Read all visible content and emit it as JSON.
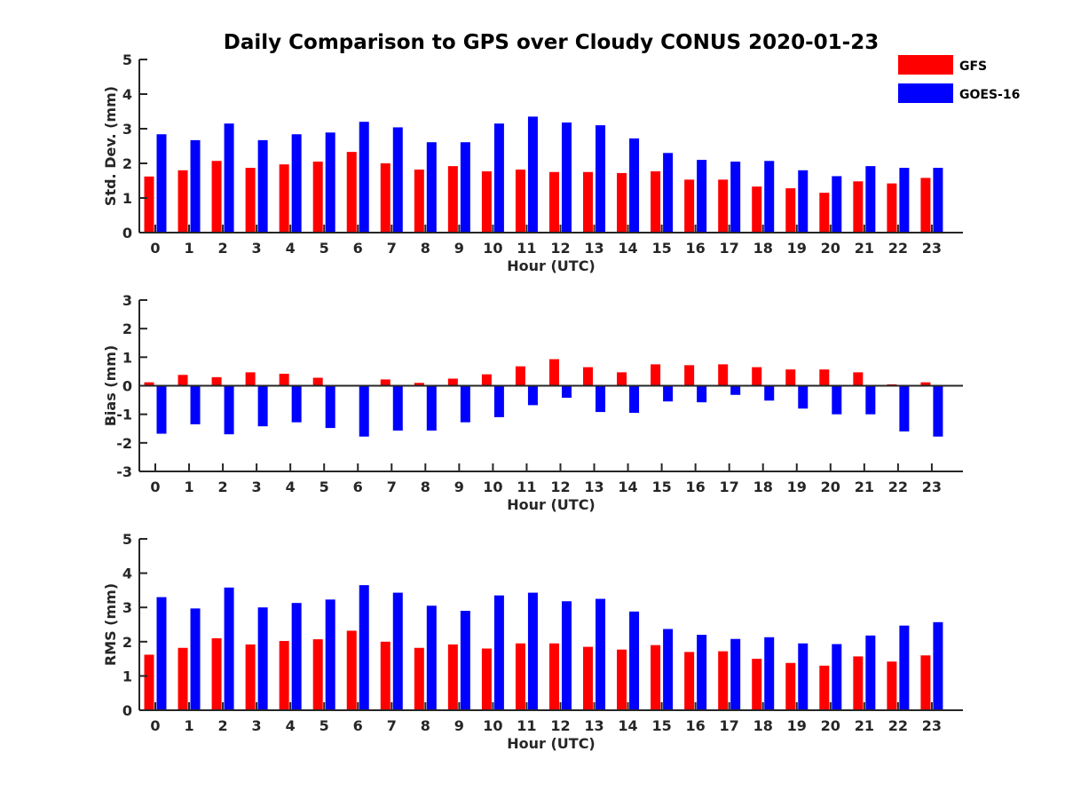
{
  "title": "Daily Comparison to GPS over Cloudy CONUS 2020-01-23",
  "legend": {
    "placement": "top-right",
    "items": [
      {
        "label": "GFS",
        "color": "#ff0000"
      },
      {
        "label": "GOES-16",
        "color": "#0000ff"
      }
    ]
  },
  "chart_data": [
    {
      "type": "bar",
      "xlabel": "Hour (UTC)",
      "ylabel": "Std. Dev. (mm)",
      "ylim": [
        0,
        5
      ],
      "yticks": [
        "0",
        "1",
        "2",
        "3",
        "4",
        "5"
      ],
      "categories": [
        "0",
        "1",
        "2",
        "3",
        "4",
        "5",
        "6",
        "7",
        "8",
        "9",
        "10",
        "11",
        "12",
        "13",
        "14",
        "15",
        "16",
        "17",
        "18",
        "19",
        "20",
        "21",
        "22",
        "23"
      ],
      "series": [
        {
          "name": "GFS",
          "color": "#ff0000",
          "values": [
            1.62,
            1.8,
            2.07,
            1.87,
            1.97,
            2.05,
            2.33,
            2.0,
            1.82,
            1.92,
            1.77,
            1.82,
            1.75,
            1.75,
            1.72,
            1.77,
            1.53,
            1.53,
            1.33,
            1.28,
            1.15,
            1.48,
            1.42,
            1.58
          ]
        },
        {
          "name": "GOES-16",
          "color": "#0000ff",
          "values": [
            2.84,
            2.67,
            3.15,
            2.67,
            2.84,
            2.89,
            3.2,
            3.04,
            2.61,
            2.61,
            3.15,
            3.35,
            3.18,
            3.1,
            2.72,
            2.3,
            2.1,
            2.05,
            2.07,
            1.8,
            1.63,
            1.92,
            1.87,
            1.87
          ]
        }
      ]
    },
    {
      "type": "bar",
      "xlabel": "Hour (UTC)",
      "ylabel": "Bias (mm)",
      "ylim": [
        -3,
        3
      ],
      "yticks": [
        "-3",
        "-2",
        "-1",
        "0",
        "1",
        "2",
        "3"
      ],
      "categories": [
        "0",
        "1",
        "2",
        "3",
        "4",
        "5",
        "6",
        "7",
        "8",
        "9",
        "10",
        "11",
        "12",
        "13",
        "14",
        "15",
        "16",
        "17",
        "18",
        "19",
        "20",
        "21",
        "22",
        "23"
      ],
      "series": [
        {
          "name": "GFS",
          "color": "#ff0000",
          "values": [
            0.12,
            0.38,
            0.3,
            0.47,
            0.42,
            0.28,
            0.0,
            0.22,
            0.1,
            0.25,
            0.4,
            0.68,
            0.93,
            0.65,
            0.47,
            0.75,
            0.72,
            0.75,
            0.65,
            0.57,
            0.57,
            0.47,
            0.05,
            0.12
          ]
        },
        {
          "name": "GOES-16",
          "color": "#0000ff",
          "values": [
            -1.68,
            -1.35,
            -1.7,
            -1.42,
            -1.28,
            -1.48,
            -1.78,
            -1.57,
            -1.57,
            -1.28,
            -1.1,
            -0.68,
            -0.42,
            -0.92,
            -0.95,
            -0.55,
            -0.58,
            -0.32,
            -0.52,
            -0.8,
            -1.0,
            -1.0,
            -1.6,
            -1.78
          ]
        }
      ]
    },
    {
      "type": "bar",
      "xlabel": "Hour (UTC)",
      "ylabel": "RMS (mm)",
      "ylim": [
        0,
        5
      ],
      "yticks": [
        "0",
        "1",
        "2",
        "3",
        "4",
        "5"
      ],
      "categories": [
        "0",
        "1",
        "2",
        "3",
        "4",
        "5",
        "6",
        "7",
        "8",
        "9",
        "10",
        "11",
        "12",
        "13",
        "14",
        "15",
        "16",
        "17",
        "18",
        "19",
        "20",
        "21",
        "22",
        "23"
      ],
      "series": [
        {
          "name": "GFS",
          "color": "#ff0000",
          "values": [
            1.62,
            1.82,
            2.1,
            1.92,
            2.02,
            2.07,
            2.32,
            2.0,
            1.82,
            1.92,
            1.8,
            1.95,
            1.95,
            1.85,
            1.77,
            1.9,
            1.7,
            1.72,
            1.5,
            1.38,
            1.3,
            1.57,
            1.42,
            1.6
          ]
        },
        {
          "name": "GOES-16",
          "color": "#0000ff",
          "values": [
            3.3,
            2.97,
            3.58,
            3.0,
            3.13,
            3.23,
            3.65,
            3.43,
            3.05,
            2.9,
            3.35,
            3.43,
            3.18,
            3.25,
            2.88,
            2.37,
            2.2,
            2.08,
            2.13,
            1.95,
            1.93,
            2.18,
            2.47,
            2.57
          ]
        }
      ]
    }
  ]
}
